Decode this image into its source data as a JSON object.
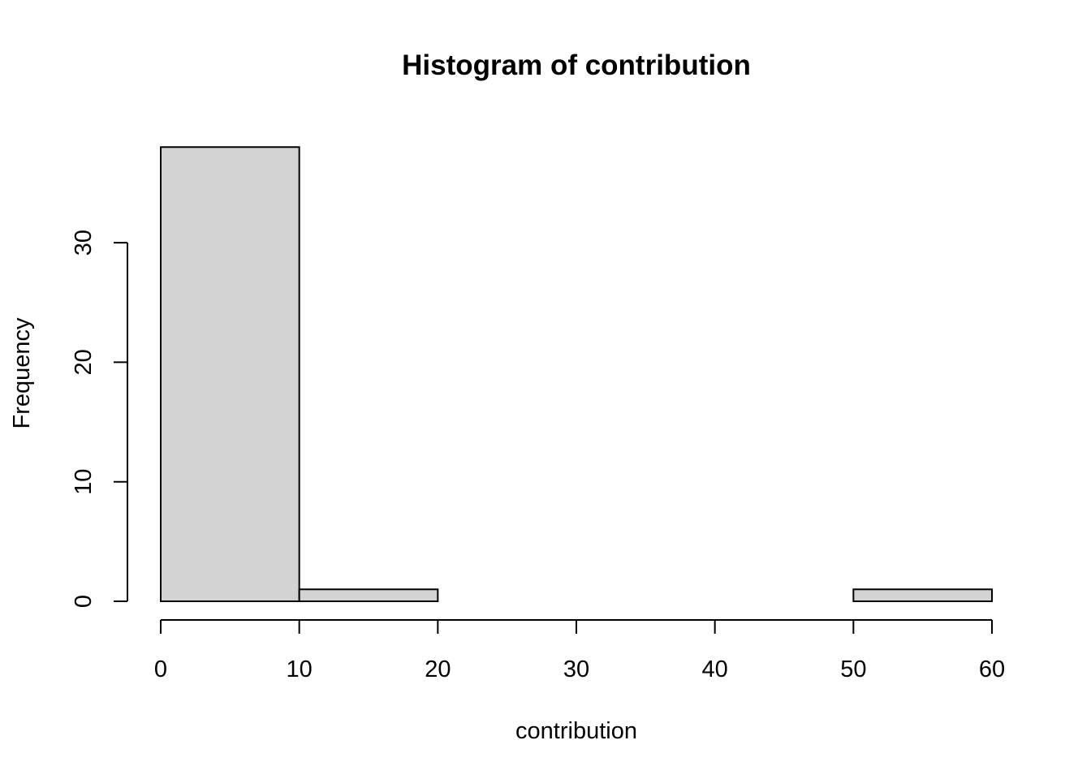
{
  "chart_data": {
    "type": "bar",
    "subtype": "histogram",
    "title": "Histogram of contribution",
    "xlabel": "contribution",
    "ylabel": "Frequency",
    "bins": [
      {
        "start": 0,
        "end": 10,
        "count": 38
      },
      {
        "start": 10,
        "end": 20,
        "count": 1
      },
      {
        "start": 20,
        "end": 30,
        "count": 0
      },
      {
        "start": 30,
        "end": 40,
        "count": 0
      },
      {
        "start": 40,
        "end": 50,
        "count": 0
      },
      {
        "start": 50,
        "end": 60,
        "count": 1
      }
    ],
    "xticks": [
      0,
      10,
      20,
      30,
      40,
      50,
      60
    ],
    "yticks": [
      0,
      10,
      20,
      30
    ],
    "xlim": [
      0,
      60
    ],
    "ylim": [
      0,
      38
    ],
    "grid": false,
    "legend": "none",
    "colors": {
      "bar_fill": "#d3d3d3",
      "bar_stroke": "#000000",
      "axis": "#000000",
      "background": "#ffffff"
    }
  }
}
